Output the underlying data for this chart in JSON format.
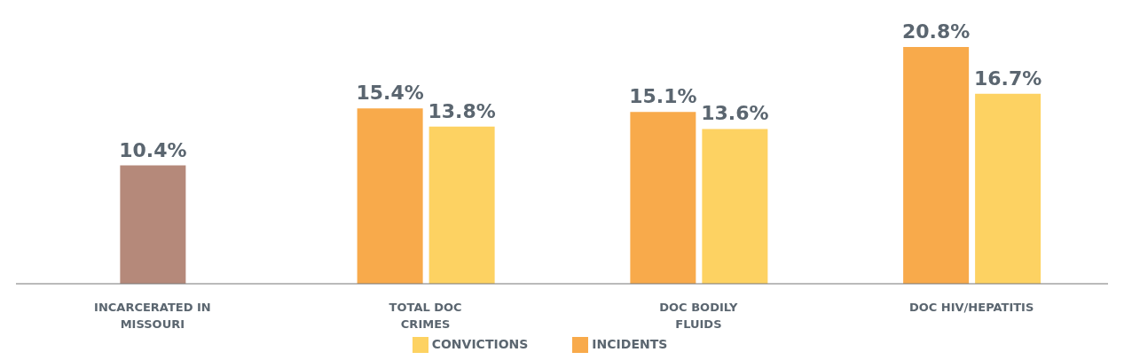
{
  "chart_data": {
    "type": "bar",
    "categories": [
      "INCARCERATED IN MISSOURI",
      "TOTAL DOC CRIMES",
      "DOC BODILY FLUIDS",
      "DOC HIV/HEPATITIS"
    ],
    "series": [
      {
        "color": "#b5897a",
        "values": [
          10.4,
          null,
          null,
          null
        ],
        "value_labels": [
          "10.4%",
          null,
          null,
          null
        ]
      },
      {
        "name": "INCIDENTS",
        "color": "#f8aa4b",
        "values": [
          null,
          15.4,
          15.1,
          20.8
        ],
        "value_labels": [
          null,
          "15.4%",
          "15.1%",
          "20.8%"
        ]
      },
      {
        "name": "CONVICTIONS",
        "color": "#fdd262",
        "values": [
          null,
          13.8,
          13.6,
          16.7
        ],
        "value_labels": [
          null,
          "13.8%",
          "13.6%",
          "16.7%"
        ]
      }
    ],
    "tick_labels": "x",
    "legend": "bottom"
  }
}
